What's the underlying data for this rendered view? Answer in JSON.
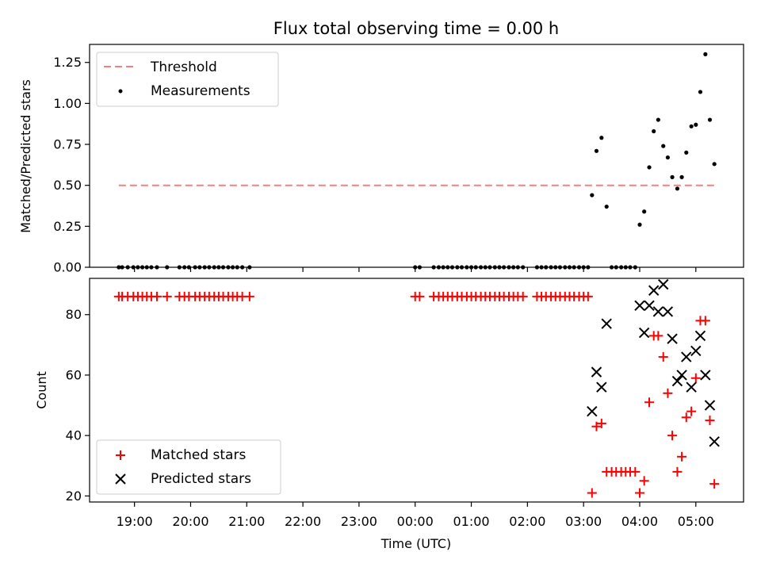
{
  "figure": {
    "title": "Flux total observing time = 0.00 h"
  },
  "chart_data": [
    {
      "type": "scatter",
      "ylabel": "Matched/Predicted stars",
      "ylim": [
        0,
        1.36
      ],
      "yticks": [
        0.0,
        0.25,
        0.5,
        0.75,
        1.0,
        1.25
      ],
      "ytick_labels": [
        "0.00",
        "0.25",
        "0.50",
        "0.75",
        "1.00",
        "1.25"
      ],
      "x_is_time_hours": true,
      "legend_position": "top-left",
      "threshold": {
        "name": "Threshold",
        "color": "#f28080",
        "style": "dashed",
        "y": 0.5,
        "x_range": [
          -5.28,
          5.35
        ]
      },
      "series": [
        {
          "name": "Measurements",
          "color": "#000000",
          "marker": "dot",
          "points": [
            [
              -5.28,
              0
            ],
            [
              -5.22,
              0
            ],
            [
              -5.12,
              0
            ],
            [
              -5.02,
              0
            ],
            [
              -4.94,
              0
            ],
            [
              -4.86,
              0
            ],
            [
              -4.78,
              0
            ],
            [
              -4.7,
              0
            ],
            [
              -4.6,
              0
            ],
            [
              -4.42,
              0
            ],
            [
              -4.2,
              0
            ],
            [
              -4.11,
              0
            ],
            [
              -4.03,
              0
            ],
            [
              -3.92,
              0
            ],
            [
              -3.84,
              0
            ],
            [
              -3.75,
              0
            ],
            [
              -3.67,
              0
            ],
            [
              -3.58,
              0
            ],
            [
              -3.5,
              0
            ],
            [
              -3.42,
              0
            ],
            [
              -3.33,
              0
            ],
            [
              -3.25,
              0
            ],
            [
              -3.17,
              0
            ],
            [
              -3.08,
              0
            ],
            [
              -2.95,
              0
            ],
            [
              0.0,
              0
            ],
            [
              0.08,
              0
            ],
            [
              0.33,
              0
            ],
            [
              0.42,
              0
            ],
            [
              0.5,
              0
            ],
            [
              0.58,
              0
            ],
            [
              0.66,
              0
            ],
            [
              0.75,
              0
            ],
            [
              0.83,
              0
            ],
            [
              0.92,
              0
            ],
            [
              1.0,
              0
            ],
            [
              1.08,
              0
            ],
            [
              1.17,
              0
            ],
            [
              1.25,
              0
            ],
            [
              1.33,
              0
            ],
            [
              1.42,
              0
            ],
            [
              1.5,
              0
            ],
            [
              1.58,
              0
            ],
            [
              1.67,
              0
            ],
            [
              1.75,
              0
            ],
            [
              1.83,
              0
            ],
            [
              1.92,
              0
            ],
            [
              2.17,
              0
            ],
            [
              2.25,
              0
            ],
            [
              2.33,
              0
            ],
            [
              2.42,
              0
            ],
            [
              2.5,
              0
            ],
            [
              2.58,
              0
            ],
            [
              2.67,
              0
            ],
            [
              2.75,
              0
            ],
            [
              2.83,
              0
            ],
            [
              2.92,
              0
            ],
            [
              3.0,
              0
            ],
            [
              3.08,
              0
            ],
            [
              3.5,
              0
            ],
            [
              3.58,
              0
            ],
            [
              3.67,
              0
            ],
            [
              3.75,
              0
            ],
            [
              3.83,
              0
            ],
            [
              3.92,
              0
            ],
            [
              3.15,
              0.44
            ],
            [
              3.23,
              0.71
            ],
            [
              3.32,
              0.79
            ],
            [
              3.41,
              0.37
            ],
            [
              4.0,
              0.26
            ],
            [
              4.08,
              0.34
            ],
            [
              4.17,
              0.61
            ],
            [
              4.25,
              0.83
            ],
            [
              4.33,
              0.9
            ],
            [
              4.42,
              0.74
            ],
            [
              4.5,
              0.67
            ],
            [
              4.58,
              0.55
            ],
            [
              4.67,
              0.48
            ],
            [
              4.75,
              0.55
            ],
            [
              4.83,
              0.7
            ],
            [
              4.92,
              0.86
            ],
            [
              5.0,
              0.87
            ],
            [
              5.08,
              1.07
            ],
            [
              5.17,
              1.3
            ],
            [
              5.25,
              0.9
            ],
            [
              5.33,
              0.63
            ]
          ]
        }
      ]
    },
    {
      "type": "scatter",
      "xlabel": "Time (UTC)",
      "ylabel": "Count",
      "ylim": [
        18,
        92
      ],
      "yticks": [
        20,
        40,
        60,
        80
      ],
      "xlim": [
        -5.8,
        5.85
      ],
      "xticks": [
        -5,
        -4,
        -3,
        -2,
        -1,
        0,
        1,
        2,
        3,
        4,
        5
      ],
      "xtick_labels": [
        "19:00",
        "20:00",
        "21:00",
        "22:00",
        "23:00",
        "00:00",
        "01:00",
        "02:00",
        "03:00",
        "04:00",
        "05:00"
      ],
      "legend_position": "bottom-left",
      "series": [
        {
          "name": "Matched stars",
          "color": "#ff0000",
          "marker": "plus",
          "points": [
            [
              -5.28,
              86
            ],
            [
              -5.22,
              86
            ],
            [
              -5.12,
              86
            ],
            [
              -5.02,
              86
            ],
            [
              -4.94,
              86
            ],
            [
              -4.86,
              86
            ],
            [
              -4.78,
              86
            ],
            [
              -4.7,
              86
            ],
            [
              -4.6,
              86
            ],
            [
              -4.42,
              86
            ],
            [
              -4.2,
              86
            ],
            [
              -4.11,
              86
            ],
            [
              -4.03,
              86
            ],
            [
              -3.92,
              86
            ],
            [
              -3.84,
              86
            ],
            [
              -3.75,
              86
            ],
            [
              -3.67,
              86
            ],
            [
              -3.58,
              86
            ],
            [
              -3.5,
              86
            ],
            [
              -3.42,
              86
            ],
            [
              -3.33,
              86
            ],
            [
              -3.25,
              86
            ],
            [
              -3.17,
              86
            ],
            [
              -3.08,
              86
            ],
            [
              -2.95,
              86
            ],
            [
              0.0,
              86
            ],
            [
              0.08,
              86
            ],
            [
              0.33,
              86
            ],
            [
              0.42,
              86
            ],
            [
              0.5,
              86
            ],
            [
              0.58,
              86
            ],
            [
              0.66,
              86
            ],
            [
              0.75,
              86
            ],
            [
              0.83,
              86
            ],
            [
              0.92,
              86
            ],
            [
              1.0,
              86
            ],
            [
              1.08,
              86
            ],
            [
              1.17,
              86
            ],
            [
              1.25,
              86
            ],
            [
              1.33,
              86
            ],
            [
              1.42,
              86
            ],
            [
              1.5,
              86
            ],
            [
              1.58,
              86
            ],
            [
              1.67,
              86
            ],
            [
              1.75,
              86
            ],
            [
              1.83,
              86
            ],
            [
              1.92,
              86
            ],
            [
              2.17,
              86
            ],
            [
              2.25,
              86
            ],
            [
              2.33,
              86
            ],
            [
              2.42,
              86
            ],
            [
              2.5,
              86
            ],
            [
              2.58,
              86
            ],
            [
              2.67,
              86
            ],
            [
              2.75,
              86
            ],
            [
              2.83,
              86
            ],
            [
              2.92,
              86
            ],
            [
              3.0,
              86
            ],
            [
              3.08,
              86
            ],
            [
              3.15,
              21
            ],
            [
              3.23,
              43
            ],
            [
              3.32,
              44
            ],
            [
              3.41,
              28
            ],
            [
              3.5,
              28
            ],
            [
              3.58,
              28
            ],
            [
              3.67,
              28
            ],
            [
              3.75,
              28
            ],
            [
              3.83,
              28
            ],
            [
              3.92,
              28
            ],
            [
              4.0,
              21
            ],
            [
              4.08,
              25
            ],
            [
              4.17,
              51
            ],
            [
              4.25,
              73
            ],
            [
              4.33,
              73
            ],
            [
              4.42,
              66
            ],
            [
              4.5,
              54
            ],
            [
              4.58,
              40
            ],
            [
              4.67,
              28
            ],
            [
              4.75,
              33
            ],
            [
              4.83,
              46
            ],
            [
              4.92,
              48
            ],
            [
              5.0,
              59
            ],
            [
              5.08,
              78
            ],
            [
              5.17,
              78
            ],
            [
              5.25,
              45
            ],
            [
              5.33,
              24
            ]
          ]
        },
        {
          "name": "Predicted stars",
          "color": "#000000",
          "marker": "x",
          "points": [
            [
              3.15,
              48
            ],
            [
              3.23,
              61
            ],
            [
              3.32,
              56
            ],
            [
              3.41,
              77
            ],
            [
              4.0,
              83
            ],
            [
              4.08,
              74
            ],
            [
              4.17,
              83
            ],
            [
              4.25,
              88
            ],
            [
              4.33,
              81
            ],
            [
              4.42,
              90
            ],
            [
              4.5,
              81
            ],
            [
              4.58,
              72
            ],
            [
              4.67,
              58
            ],
            [
              4.75,
              60
            ],
            [
              4.83,
              66
            ],
            [
              4.92,
              56
            ],
            [
              5.0,
              68
            ],
            [
              5.08,
              73
            ],
            [
              5.17,
              60
            ],
            [
              5.25,
              50
            ],
            [
              5.33,
              38
            ]
          ]
        }
      ]
    }
  ]
}
